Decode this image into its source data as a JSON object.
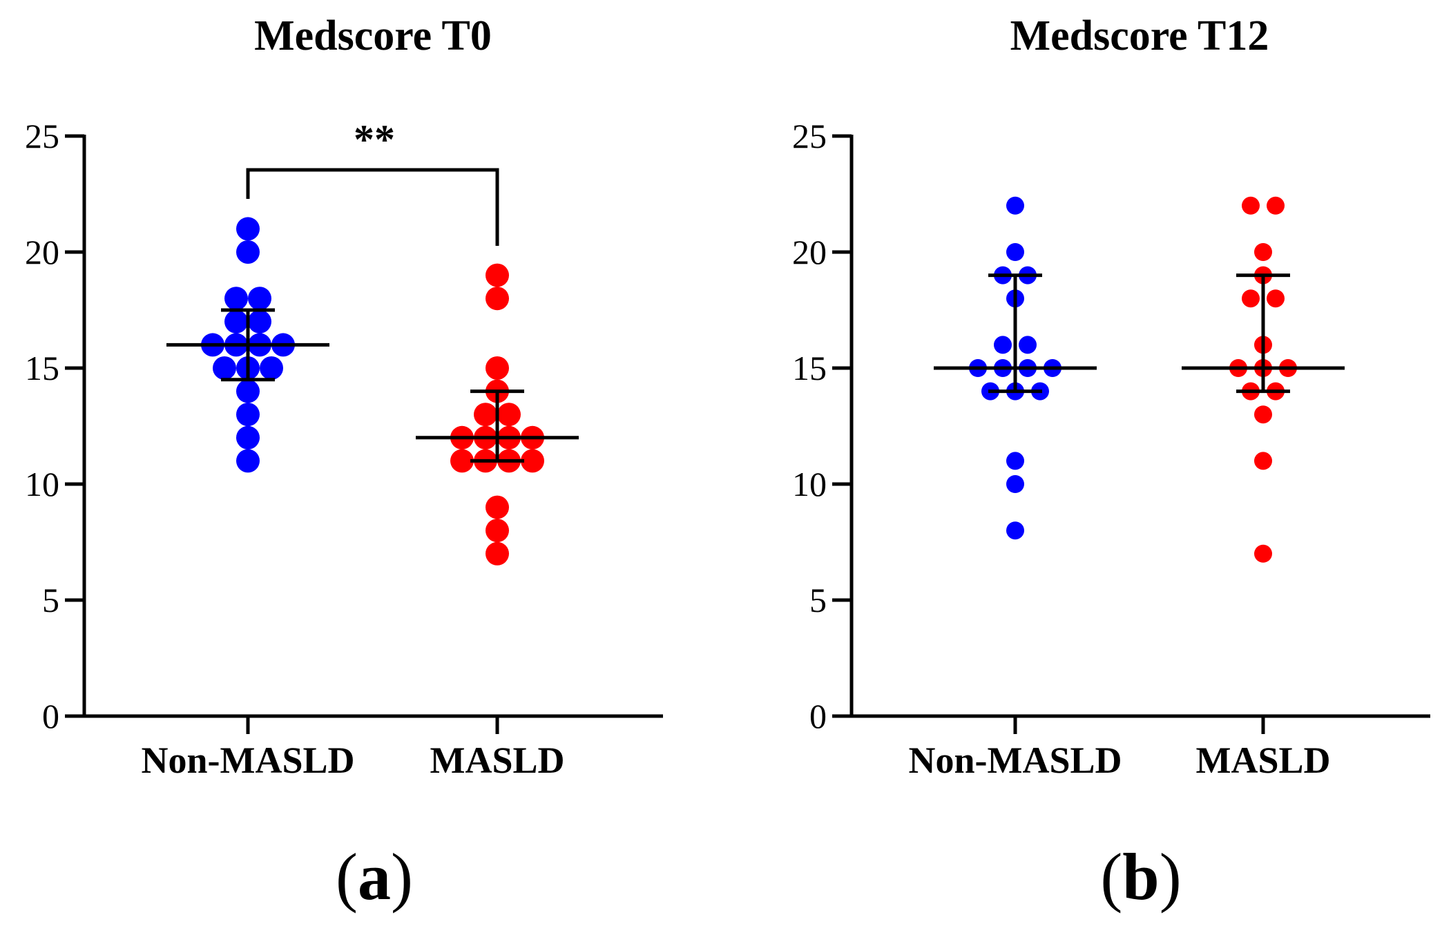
{
  "chart_data": [
    {
      "type": "scatter",
      "title": "Medscore T0",
      "panel_label": "a",
      "xlabel": "",
      "ylabel": "",
      "ylim": [
        0,
        25
      ],
      "yticks": [
        0,
        5,
        10,
        15,
        20,
        25
      ],
      "categories": [
        "Non-MASLD",
        "MASLD"
      ],
      "series": [
        {
          "name": "Non-MASLD",
          "color": "#0000ff",
          "values": [
            21,
            20,
            18,
            18,
            17,
            17,
            16,
            16,
            16,
            16,
            15,
            15,
            15,
            14,
            13,
            12,
            11
          ],
          "median": 16,
          "q1": 14.5,
          "q3": 17.5
        },
        {
          "name": "MASLD",
          "color": "#ff0000",
          "values": [
            19,
            18,
            15,
            14,
            13,
            13,
            12,
            12,
            12,
            12,
            11,
            11,
            11,
            11,
            9,
            8,
            7
          ],
          "median": 12,
          "q1": 11,
          "q3": 14
        }
      ],
      "significance": {
        "between": [
          "Non-MASLD",
          "MASLD"
        ],
        "label": "**"
      }
    },
    {
      "type": "scatter",
      "title": "Medscore T12",
      "panel_label": "b",
      "xlabel": "",
      "ylabel": "",
      "ylim": [
        0,
        25
      ],
      "yticks": [
        0,
        5,
        10,
        15,
        20,
        25
      ],
      "categories": [
        "Non-MASLD",
        "MASLD"
      ],
      "series": [
        {
          "name": "Non-MASLD",
          "color": "#0000ff",
          "values": [
            22,
            20,
            19,
            19,
            18,
            16,
            16,
            15,
            15,
            15,
            15,
            14,
            14,
            14,
            11,
            10,
            8
          ],
          "median": 15,
          "q1": 14,
          "q3": 19
        },
        {
          "name": "MASLD",
          "color": "#ff0000",
          "values": [
            22,
            22,
            20,
            19,
            18,
            18,
            16,
            15,
            15,
            15,
            14,
            14,
            13,
            11,
            7
          ],
          "median": 15,
          "q1": 14,
          "q3": 19
        }
      ]
    }
  ]
}
